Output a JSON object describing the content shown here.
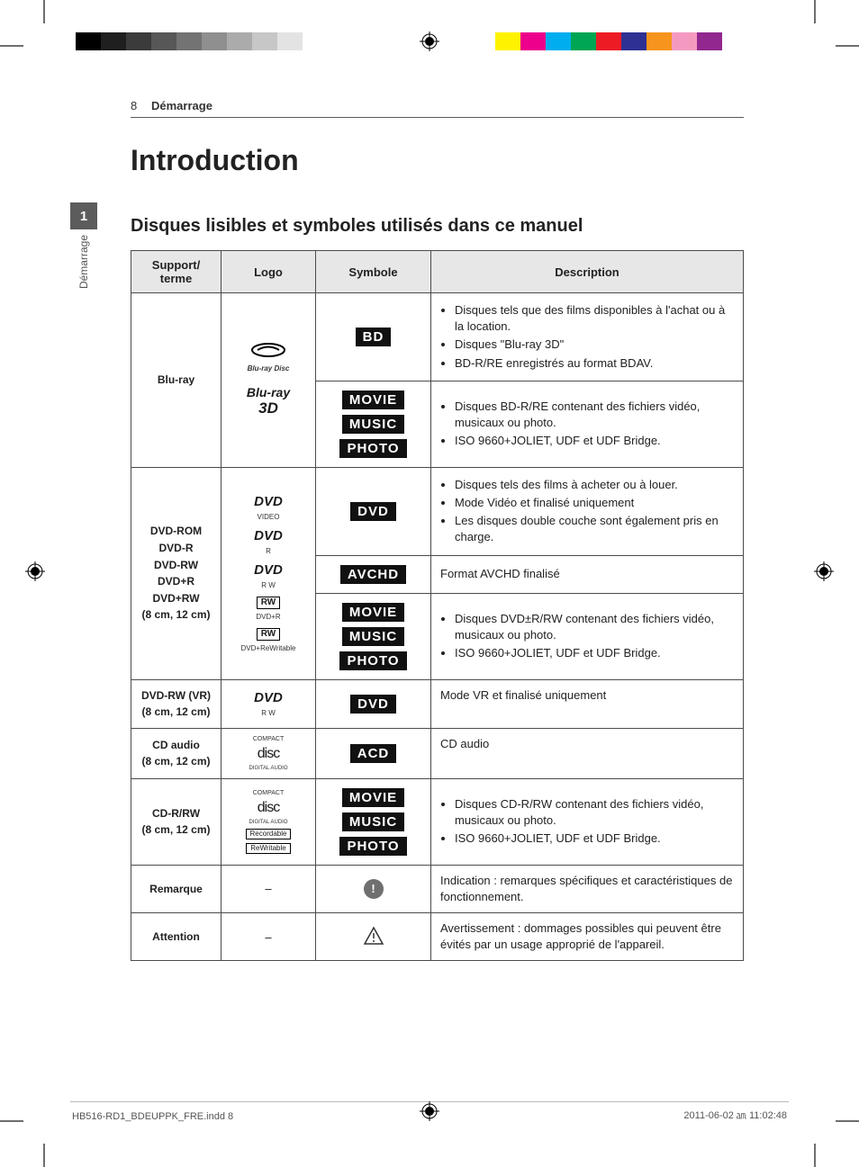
{
  "page": {
    "number": "8",
    "section": "Démarrage",
    "title": "Introduction",
    "subtitle": "Disques lisibles et symboles utilisés dans ce manuel"
  },
  "side_tab": {
    "number": "1",
    "label": "Démarrage"
  },
  "registration": {
    "gray_swatches": [
      "#000000",
      "#1f1f1f",
      "#3b3b3b",
      "#575757",
      "#737373",
      "#8f8f8f",
      "#ababab",
      "#c7c7c7",
      "#e3e3e3",
      "#ffffff"
    ],
    "gray_swatch_width": 28,
    "color_swatches": [
      "#fff200",
      "#ec008c",
      "#00aeef",
      "#00a651",
      "#ed1c24",
      "#2e3192",
      "#f7941d",
      "#f49ac1",
      "#92278f"
    ],
    "color_swatch_width": 28
  },
  "table": {
    "headers": {
      "media": "Support/ terme",
      "logo": "Logo",
      "symbol": "Symbole",
      "desc": "Description"
    },
    "rows": {
      "bluray": {
        "media": "Blu-ray",
        "logos": [
          "Blu-ray Disc",
          "Blu-ray 3D"
        ],
        "sym1": "BD",
        "desc1": [
          "Disques tels que des films disponibles à l'achat ou à la location.",
          "Disques \"Blu-ray 3D\"",
          "BD-R/RE enregistrés au format BDAV."
        ],
        "sym2": [
          "MOVIE",
          "MUSIC",
          "PHOTO"
        ],
        "desc2": [
          "Disques BD-R/RE contenant des fichiers vidéo, musicaux ou photo.",
          "ISO 9660+JOLIET, UDF et UDF Bridge."
        ]
      },
      "dvdrom": {
        "media": "DVD-ROM\nDVD-R\nDVD-RW\nDVD+R\nDVD+RW\n(8 cm, 12 cm)",
        "logos": [
          "DVD VIDEO",
          "DVD R",
          "DVD RW",
          "RW DVD+R",
          "RW DVD+ReWritable"
        ],
        "sym1": "DVD",
        "desc1": [
          "Disques tels des films à acheter ou à louer.",
          "Mode Vidéo et finalisé uniquement",
          "Les disques double couche sont également pris en charge."
        ],
        "sym2": "AVCHD",
        "desc2_text": "Format AVCHD finalisé",
        "sym3": [
          "MOVIE",
          "MUSIC",
          "PHOTO"
        ],
        "desc3": [
          "Disques DVD±R/RW contenant des fichiers vidéo, musicaux ou photo.",
          "ISO 9660+JOLIET, UDF et UDF Bridge."
        ]
      },
      "dvdrw_vr": {
        "media": "DVD-RW (VR)\n(8 cm, 12 cm)",
        "logo": "DVD RW",
        "sym": "DVD",
        "desc": "Mode VR et finalisé uniquement"
      },
      "cdaudio": {
        "media": "CD audio\n(8 cm, 12 cm)",
        "logo": "COMPACT disc DIGITAL AUDIO",
        "sym": "ACD",
        "desc": "CD audio"
      },
      "cdrrw": {
        "media": "CD-R/RW\n(8 cm, 12 cm)",
        "logo": "COMPACT disc DIGITAL AUDIO Recordable ReWritable",
        "sym": [
          "MOVIE",
          "MUSIC",
          "PHOTO"
        ],
        "desc": [
          "Disques CD-R/RW contenant des fichiers vidéo, musicaux ou photo.",
          "ISO 9660+JOLIET, UDF et UDF Bridge."
        ]
      },
      "remarque": {
        "media": "Remarque",
        "logo": "–",
        "desc": "Indication : remarques spécifiques et caractéristiques de fonctionnement."
      },
      "attention": {
        "media": "Attention",
        "logo": "–",
        "desc": "Avertissement : dommages possibles qui peuvent être évités par un usage approprié de l'appareil."
      }
    }
  },
  "footer": {
    "left": "HB516-RD1_BDEUPPK_FRE.indd   8",
    "right": "2011-06-02   ㏂ 11:02:48"
  },
  "colors": {
    "text": "#1a1a1a",
    "border": "#4b4b4b",
    "header_bg": "#e7e7e7",
    "side_tab": "#5c5c5c",
    "note_bg": "#6f6f6f"
  }
}
